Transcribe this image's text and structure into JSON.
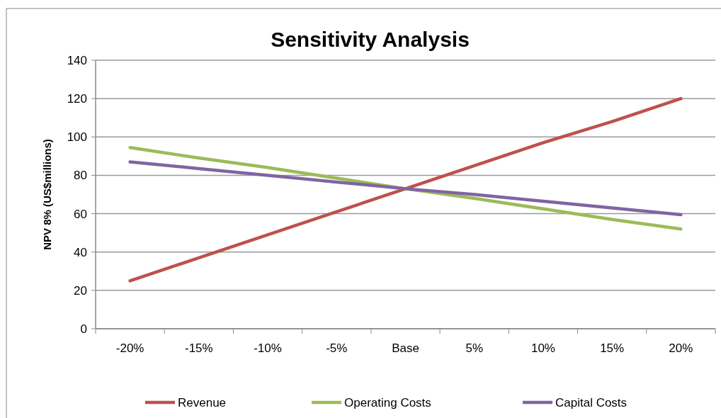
{
  "chart_data": {
    "type": "line",
    "title": "Sensitivity Analysis",
    "ylabel": "NPV 8% (US$millions)",
    "categories": [
      "-20%",
      "-15%",
      "-10%",
      "-5%",
      "Base",
      "5%",
      "10%",
      "15%",
      "20%"
    ],
    "series": [
      {
        "name": "Revenue",
        "color": "#c0504d",
        "values": [
          25,
          37,
          49,
          61,
          73,
          85,
          97,
          108,
          120
        ]
      },
      {
        "name": "Operating Costs",
        "color": "#9bbb59",
        "values": [
          94.5,
          89,
          84,
          78.5,
          73,
          68,
          62.5,
          57,
          52
        ]
      },
      {
        "name": "Capital Costs",
        "color": "#8064a2",
        "values": [
          87,
          83.5,
          80,
          76.5,
          73,
          70,
          66.5,
          63,
          59.5
        ]
      }
    ],
    "ylim": [
      0,
      140
    ],
    "yticks": [
      0,
      20,
      40,
      60,
      80,
      100,
      120,
      140
    ],
    "grid": "y",
    "legend": "bottom",
    "marker": "none",
    "line_style": "solid"
  }
}
